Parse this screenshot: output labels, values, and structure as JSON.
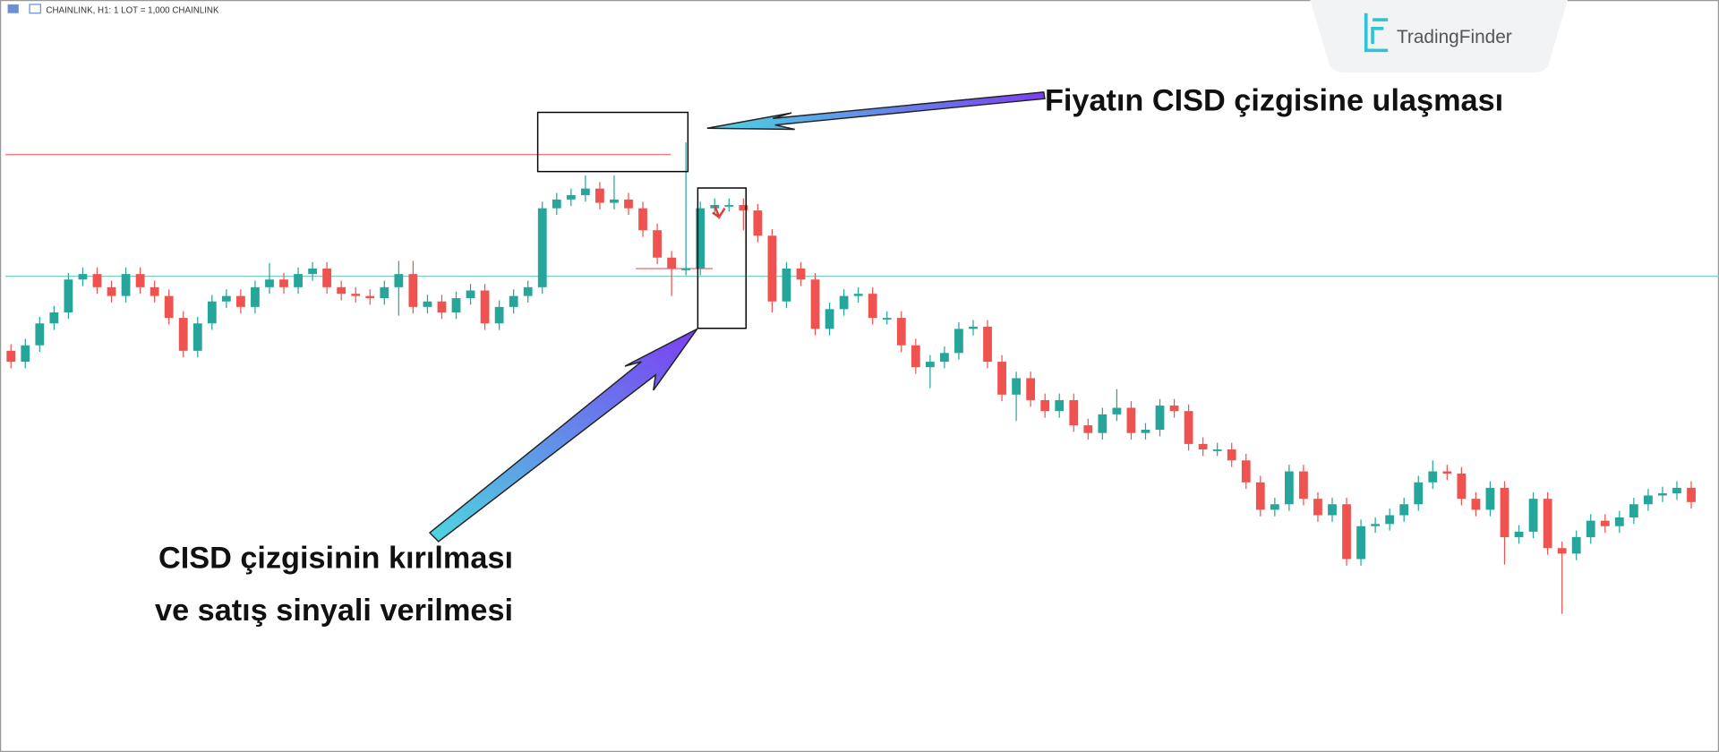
{
  "header": {
    "title": "CHAINLINK, H1:  1 LOT = 1,000 CHAINLINK"
  },
  "brand": {
    "name": "TradingFinder"
  },
  "annotations": {
    "top": "Fiyatın CISD çizgisine ulaşması",
    "bottom_1": "CISD çizgisinin kırılması",
    "bottom_2": "ve satış sinyali verilmesi"
  },
  "chart_data": {
    "type": "candlestick",
    "up_color": "#26a69a",
    "down_color": "#ef5350",
    "ylim": [
      14,
      700
    ],
    "levels": [
      {
        "value": 559,
        "color": "#f08080"
      },
      {
        "value": 448,
        "color": "#7fcfc6"
      },
      {
        "value": 455,
        "color": "#f08080"
      }
    ],
    "open": [
      380,
      370,
      385,
      405,
      415,
      445,
      450,
      438,
      430,
      450,
      438,
      430,
      410,
      380,
      405,
      425,
      430,
      420,
      438,
      445,
      438,
      450,
      455,
      438,
      432,
      430,
      428,
      438,
      450,
      420,
      425,
      415,
      428,
      435,
      405,
      420,
      430,
      438,
      510,
      518,
      522,
      528,
      515,
      518,
      510,
      490,
      465,
      455,
      455,
      510,
      513,
      513,
      508,
      485,
      425,
      455,
      445,
      400,
      418,
      430,
      432,
      410,
      410,
      385,
      365,
      370,
      378,
      400,
      402,
      370,
      340,
      355,
      335,
      325,
      335,
      312,
      305,
      322,
      328,
      305,
      308,
      330,
      325,
      295,
      290,
      290,
      280,
      260,
      235,
      240,
      270,
      245,
      230,
      240,
      190,
      220,
      222,
      230,
      240,
      260,
      270,
      268,
      245,
      235,
      255,
      210,
      215,
      245,
      200,
      195,
      210,
      225,
      220,
      228,
      240,
      248,
      250,
      255
    ],
    "close": [
      370,
      385,
      405,
      415,
      445,
      450,
      438,
      430,
      450,
      438,
      430,
      410,
      380,
      405,
      425,
      430,
      420,
      438,
      445,
      438,
      450,
      455,
      438,
      432,
      430,
      428,
      438,
      450,
      420,
      425,
      415,
      428,
      435,
      405,
      420,
      430,
      438,
      510,
      518,
      522,
      528,
      515,
      518,
      510,
      490,
      465,
      455,
      455,
      510,
      513,
      513,
      508,
      485,
      425,
      455,
      445,
      400,
      418,
      430,
      432,
      410,
      410,
      385,
      365,
      370,
      378,
      400,
      402,
      370,
      340,
      355,
      335,
      325,
      335,
      312,
      305,
      322,
      328,
      305,
      308,
      330,
      325,
      295,
      290,
      290,
      280,
      260,
      235,
      240,
      270,
      245,
      230,
      240,
      190,
      220,
      222,
      230,
      240,
      260,
      270,
      268,
      245,
      235,
      255,
      210,
      215,
      245,
      200,
      195,
      210,
      225,
      220,
      228,
      240,
      248,
      250,
      255,
      242
    ],
    "high": [
      386,
      391,
      411,
      421,
      451,
      456,
      456,
      444,
      456,
      456,
      444,
      436,
      416,
      411,
      431,
      436,
      436,
      444,
      460,
      451,
      456,
      461,
      461,
      444,
      438,
      436,
      444,
      462,
      462,
      431,
      431,
      434,
      441,
      441,
      426,
      436,
      444,
      516,
      524,
      528,
      540,
      534,
      540,
      524,
      516,
      496,
      471,
      570,
      516,
      519,
      519,
      519,
      514,
      491,
      461,
      461,
      451,
      424,
      436,
      438,
      438,
      416,
      416,
      391,
      376,
      384,
      406,
      408,
      408,
      376,
      361,
      361,
      341,
      341,
      341,
      318,
      328,
      345,
      334,
      314,
      336,
      336,
      331,
      301,
      296,
      296,
      286,
      266,
      246,
      276,
      276,
      251,
      246,
      246,
      226,
      228,
      236,
      246,
      266,
      280,
      276,
      274,
      251,
      261,
      261,
      221,
      251,
      251,
      206,
      216,
      231,
      231,
      234,
      246,
      254,
      256,
      261,
      261
    ],
    "low": [
      364,
      364,
      379,
      399,
      409,
      439,
      432,
      424,
      424,
      432,
      424,
      404,
      374,
      374,
      399,
      419,
      414,
      414,
      432,
      432,
      432,
      444,
      432,
      426,
      424,
      422,
      422,
      412,
      414,
      414,
      409,
      409,
      422,
      399,
      399,
      414,
      424,
      432,
      504,
      512,
      516,
      509,
      509,
      504,
      484,
      459,
      430,
      449,
      449,
      504,
      507,
      490,
      479,
      415,
      419,
      439,
      394,
      394,
      412,
      424,
      404,
      404,
      379,
      359,
      346,
      364,
      372,
      394,
      364,
      334,
      316,
      329,
      319,
      319,
      306,
      299,
      299,
      316,
      299,
      299,
      302,
      319,
      289,
      284,
      284,
      274,
      254,
      229,
      229,
      234,
      239,
      224,
      224,
      184,
      184,
      214,
      216,
      224,
      234,
      254,
      262,
      239,
      229,
      229,
      185,
      204,
      209,
      194,
      140,
      189,
      204,
      214,
      214,
      222,
      234,
      242,
      244,
      236
    ]
  }
}
